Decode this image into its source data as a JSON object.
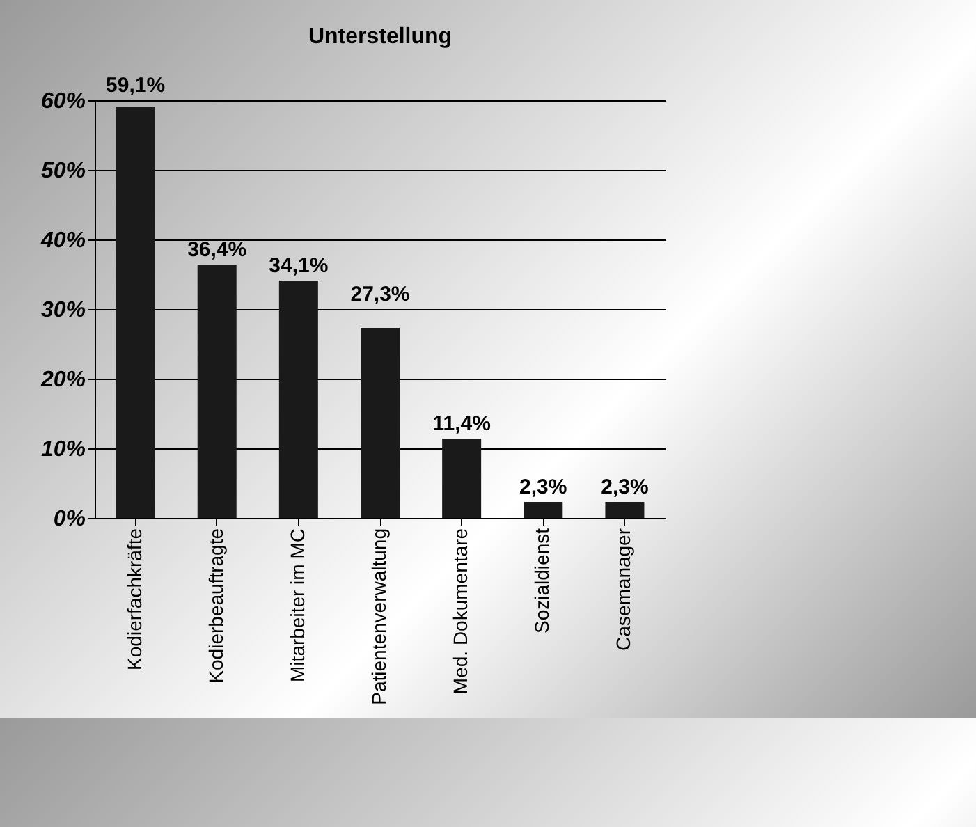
{
  "chart_data": {
    "type": "bar",
    "title": "Unterstellung",
    "categories": [
      "Kodierfachkräfte",
      "Kodierbeauftragte",
      "Mitarbeiter im MC",
      "Patientenverwaltung",
      "Med. Dokumentare",
      "Sozialdienst",
      "Casemanager"
    ],
    "values": [
      59.1,
      36.4,
      34.1,
      27.3,
      11.4,
      2.3,
      2.3
    ],
    "value_labels": [
      "59,1%",
      "36,4%",
      "34,1%",
      "27,3%",
      "11,4%",
      "2,3%",
      "2,3%"
    ],
    "color": "#1a1a1a",
    "ylim": [
      0,
      60
    ],
    "yticks": [
      {
        "value": 0,
        "label": "0%"
      },
      {
        "value": 10,
        "label": "10%"
      },
      {
        "value": 20,
        "label": "20%"
      },
      {
        "value": 30,
        "label": "30%"
      },
      {
        "value": 40,
        "label": "40%"
      },
      {
        "value": 50,
        "label": "50%"
      },
      {
        "value": 60,
        "label": "60%"
      }
    ],
    "grid": "y"
  }
}
